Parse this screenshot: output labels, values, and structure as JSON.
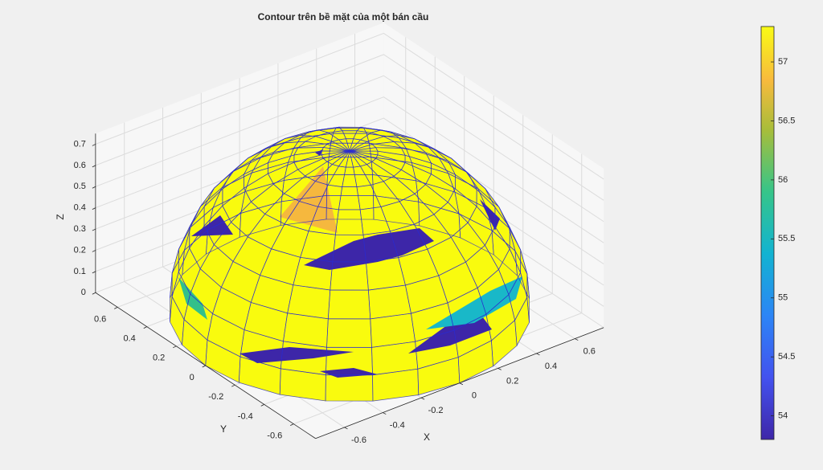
{
  "chart_data": {
    "type": "surface",
    "title": "Contour trên bề mặt của một bán cầu",
    "xlabel": "X",
    "ylabel": "Y",
    "zlabel": "Z",
    "xlim": [
      -0.75,
      0.75
    ],
    "ylim": [
      -0.75,
      0.75
    ],
    "zlim": [
      0,
      0.75
    ],
    "xticks": [
      -0.6,
      -0.4,
      -0.2,
      0,
      0.2,
      0.4,
      0.6
    ],
    "yticks": [
      -0.6,
      -0.4,
      -0.2,
      0,
      0.2,
      0.4,
      0.6
    ],
    "zticks": [
      0,
      0.1,
      0.2,
      0.3,
      0.4,
      0.5,
      0.6,
      0.7
    ],
    "grid": true,
    "colorbar": {
      "clim": [
        53.8,
        57.3
      ],
      "ticks": [
        54,
        54.5,
        55,
        55.5,
        56,
        56.5,
        57
      ]
    }
  }
}
